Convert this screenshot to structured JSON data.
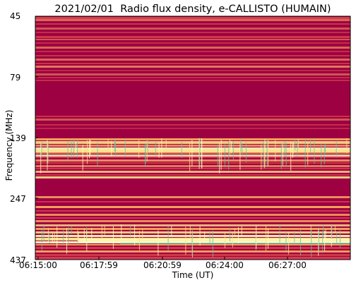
{
  "chart_data": {
    "type": "heatmap",
    "title": "2021/02/01  Radio flux density, e-CALLISTO (HUMAIN)",
    "xlabel": "Time (UT)",
    "ylabel": "Frequency (MHz)",
    "x_ticks": [
      "06:15:00",
      "06:17:59",
      "06:20:59",
      "06:24:00",
      "06:27:00"
    ],
    "y_ticks": [
      "45",
      "79",
      "139",
      "247",
      "437"
    ],
    "y_axis": "log, frequency increasing downward",
    "colormap": "Spectral (dark red = low, yellow = mid, cyan/teal = high)",
    "colors": {
      "low": "#9e0142",
      "mid_low": "#d53e4f",
      "mid": "#fdae61",
      "mid_high": "#fee08b",
      "high": "#ffffbf",
      "peak": "#66c2a5"
    }
  }
}
